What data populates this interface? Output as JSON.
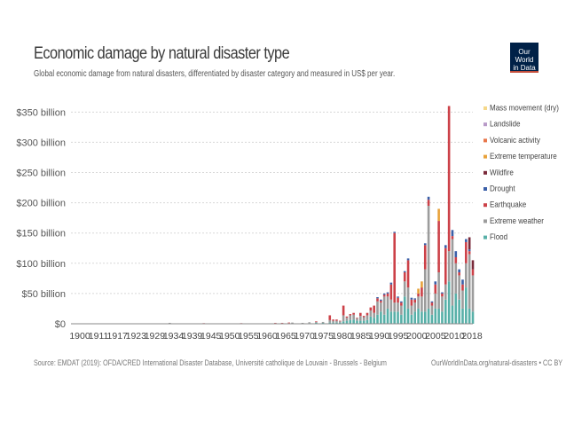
{
  "header": {
    "title": "Economic damage by natural disaster type",
    "subtitle": "Global economic damage from natural disasters, differentiated by disaster category and measured in US$ per year.",
    "logo_line1": "Our World",
    "logo_line2": "in Data"
  },
  "footer": {
    "source": "Source: EMDAT (2019): OFDA/CRED International Disaster Database, Université catholique de Louvain - Brussels - Belgium",
    "credit": "OurWorldInData.org/natural-disasters • CC BY"
  },
  "colors": {
    "Mass movement (dry)": "#f5d88a",
    "Landslide": "#b89ac8",
    "Volcanic activity": "#e8764a",
    "Extreme temperature": "#e8a23a",
    "Wildfire": "#7a2a3a",
    "Drought": "#3a5fa8",
    "Earthquake": "#cc4148",
    "Extreme weather": "#9c9c9c",
    "Flood": "#58b0a8"
  },
  "chart_data": {
    "type": "bar",
    "stacked": true,
    "title": "Economic damage by natural disaster type",
    "subtitle": "Global economic damage from natural disasters, differentiated by disaster category and measured in US$ per year.",
    "ylim": [
      0,
      360
    ],
    "y_unit": "billion US$",
    "y_ticks": [
      "$0",
      "$50 billion",
      "$100 billion",
      "$150 billion",
      "$200 billion",
      "$250 billion",
      "$300 billion",
      "$350 billion"
    ],
    "x_ticks": [
      "1900",
      "1911",
      "1917",
      "1923",
      "1929",
      "1934",
      "1939",
      "1945",
      "1950",
      "1955",
      "1960",
      "1965",
      "1970",
      "1975",
      "1980",
      "1985",
      "1990",
      "1995",
      "2000",
      "2005",
      "2010",
      "2018"
    ],
    "legend_position": "right",
    "grid": true,
    "legend": [
      "Mass movement (dry)",
      "Landslide",
      "Volcanic activity",
      "Extreme temperature",
      "Wildfire",
      "Drought",
      "Earthquake",
      "Extreme weather",
      "Flood"
    ],
    "stack_order": [
      "Flood",
      "Extreme weather",
      "Earthquake",
      "Drought",
      "Wildfire",
      "Extreme temperature",
      "Volcanic activity",
      "Landslide",
      "Mass movement (dry)"
    ],
    "bars": [
      {
        "x": 1929,
        "Flood": 0.5,
        "Extreme weather": 1
      },
      {
        "x": 1939,
        "Extreme weather": 0.5,
        "Earthquake": 0.5
      },
      {
        "x": 1950,
        "Extreme weather": 0.5,
        "Earthquake": 0.5
      },
      {
        "x": 1960,
        "Extreme weather": 1,
        "Earthquake": 0.5
      },
      {
        "x": 1962,
        "Extreme weather": 1,
        "Earthquake": 0.5
      },
      {
        "x": 1964,
        "Extreme weather": 1,
        "Earthquake": 1
      },
      {
        "x": 1965,
        "Flood": 0.5,
        "Extreme weather": 1.5
      },
      {
        "x": 1968,
        "Flood": 0.5,
        "Extreme weather": 1
      },
      {
        "x": 1970,
        "Flood": 1,
        "Extreme weather": 1.5
      },
      {
        "x": 1972,
        "Flood": 1.5,
        "Extreme weather": 1.5,
        "Earthquake": 1
      },
      {
        "x": 1974,
        "Flood": 1.5,
        "Extreme weather": 1.5
      },
      {
        "x": 1976,
        "Flood": 2,
        "Extreme weather": 4,
        "Earthquake": 8
      },
      {
        "x": 1977,
        "Flood": 2,
        "Extreme weather": 3,
        "Earthquake": 2
      },
      {
        "x": 1978,
        "Flood": 2,
        "Extreme weather": 3,
        "Earthquake": 2
      },
      {
        "x": 1979,
        "Flood": 2,
        "Extreme weather": 2,
        "Earthquake": 1
      },
      {
        "x": 1980,
        "Flood": 4,
        "Extreme weather": 10,
        "Earthquake": 16
      },
      {
        "x": 1981,
        "Flood": 5,
        "Extreme weather": 5,
        "Earthquake": 2
      },
      {
        "x": 1982,
        "Flood": 6,
        "Extreme weather": 8,
        "Earthquake": 2
      },
      {
        "x": 1983,
        "Flood": 7,
        "Extreme weather": 8,
        "Earthquake": 3
      },
      {
        "x": 1984,
        "Flood": 5,
        "Extreme weather": 4,
        "Earthquake": 1
      },
      {
        "x": 1985,
        "Flood": 5,
        "Extreme weather": 8,
        "Earthquake": 5
      },
      {
        "x": 1986,
        "Flood": 5,
        "Extreme weather": 6,
        "Earthquake": 2
      },
      {
        "x": 1987,
        "Flood": 6,
        "Extreme weather": 8,
        "Earthquake": 4
      },
      {
        "x": 1988,
        "Flood": 12,
        "Extreme weather": 10,
        "Earthquake": 5
      },
      {
        "x": 1989,
        "Flood": 10,
        "Extreme weather": 8,
        "Earthquake": 12
      },
      {
        "x": 1990,
        "Flood": 15,
        "Extreme weather": 22,
        "Earthquake": 5,
        "Drought": 2
      },
      {
        "x": 1991,
        "Flood": 20,
        "Extreme weather": 15,
        "Earthquake": 3,
        "Drought": 2
      },
      {
        "x": 1992,
        "Flood": 15,
        "Extreme weather": 30,
        "Earthquake": 3,
        "Drought": 2
      },
      {
        "x": 1993,
        "Flood": 25,
        "Extreme weather": 20,
        "Earthquake": 5,
        "Drought": 2
      },
      {
        "x": 1994,
        "Flood": 20,
        "Extreme weather": 20,
        "Earthquake": 25,
        "Drought": 3
      },
      {
        "x": 1995,
        "Flood": 20,
        "Extreme weather": 15,
        "Earthquake": 115,
        "Drought": 2
      },
      {
        "x": 1996,
        "Flood": 20,
        "Extreme weather": 15,
        "Earthquake": 8,
        "Drought": 2
      },
      {
        "x": 1997,
        "Flood": 15,
        "Extreme weather": 15,
        "Earthquake": 5,
        "Drought": 2
      },
      {
        "x": 1998,
        "Flood": 45,
        "Extreme weather": 25,
        "Earthquake": 15,
        "Drought": 2
      },
      {
        "x": 1999,
        "Flood": 25,
        "Extreme weather": 35,
        "Earthquake": 45,
        "Drought": 3
      },
      {
        "x": 2000,
        "Flood": 15,
        "Extreme weather": 15,
        "Earthquake": 10,
        "Drought": 3
      },
      {
        "x": 2001,
        "Flood": 20,
        "Extreme weather": 15,
        "Earthquake": 5,
        "Drought": 2
      },
      {
        "x": 2002,
        "Flood": 25,
        "Extreme weather": 20,
        "Earthquake": 5,
        "Extreme temperature": 8
      },
      {
        "x": 2003,
        "Flood": 20,
        "Extreme weather": 25,
        "Earthquake": 15,
        "Extreme temperature": 10
      },
      {
        "x": 2004,
        "Flood": 20,
        "Extreme weather": 70,
        "Earthquake": 40,
        "Drought": 3
      },
      {
        "x": 2005,
        "Flood": 25,
        "Extreme weather": 170,
        "Earthquake": 10,
        "Drought": 5
      },
      {
        "x": 2006,
        "Flood": 15,
        "Extreme weather": 15,
        "Earthquake": 5,
        "Drought": 2
      },
      {
        "x": 2007,
        "Flood": 25,
        "Extreme weather": 25,
        "Earthquake": 15,
        "Drought": 5
      },
      {
        "x": 2008,
        "Flood": 25,
        "Extreme weather": 60,
        "Earthquake": 85,
        "Extreme temperature": 20
      },
      {
        "x": 2009,
        "Flood": 20,
        "Extreme weather": 25,
        "Earthquake": 5,
        "Drought": 2
      },
      {
        "x": 2010,
        "Flood": 40,
        "Extreme weather": 25,
        "Earthquake": 60,
        "Drought": 5
      },
      {
        "x": 2011,
        "Flood": 70,
        "Extreme weather": 50,
        "Earthquake": 240
      },
      {
        "x": 2012,
        "Flood": 30,
        "Extreme weather": 110,
        "Earthquake": 5,
        "Drought": 10
      },
      {
        "x": 2013,
        "Flood": 50,
        "Extreme weather": 50,
        "Earthquake": 10,
        "Drought": 10
      },
      {
        "x": 2014,
        "Flood": 40,
        "Extreme weather": 40,
        "Earthquake": 5,
        "Drought": 5
      },
      {
        "x": 2015,
        "Flood": 25,
        "Extreme weather": 30,
        "Earthquake": 10,
        "Drought": 8
      },
      {
        "x": 2016,
        "Flood": 60,
        "Extreme weather": 40,
        "Earthquake": 35,
        "Drought": 5
      },
      {
        "x": 2017,
        "Flood": 25,
        "Extreme weather": 90,
        "Earthquake": 5,
        "Wildfire": 20,
        "Drought": 3
      },
      {
        "x": 2018,
        "Flood": 20,
        "Extreme weather": 60,
        "Earthquake": 10,
        "Wildfire": 15
      }
    ]
  }
}
